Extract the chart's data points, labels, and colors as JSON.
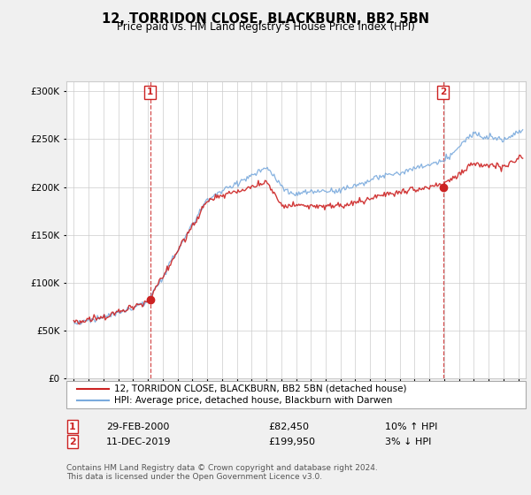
{
  "title": "12, TORRIDON CLOSE, BLACKBURN, BB2 5BN",
  "subtitle": "Price paid vs. HM Land Registry's House Price Index (HPI)",
  "legend_house": "12, TORRIDON CLOSE, BLACKBURN, BB2 5BN (detached house)",
  "legend_hpi": "HPI: Average price, detached house, Blackburn with Darwen",
  "footnote": "Contains HM Land Registry data © Crown copyright and database right 2024.\nThis data is licensed under the Open Government Licence v3.0.",
  "transaction1_date": "29-FEB-2000",
  "transaction1_price": "£82,450",
  "transaction1_hpi": "10% ↑ HPI",
  "transaction1_year": 2000.15,
  "transaction1_value": 82450,
  "transaction2_date": "11-DEC-2019",
  "transaction2_price": "£199,950",
  "transaction2_hpi": "3% ↓ HPI",
  "transaction2_year": 2019.92,
  "transaction2_value": 199950,
  "ylim_min": 0,
  "ylim_max": 310000,
  "xlim_min": 1994.5,
  "xlim_max": 2025.5,
  "hpi_color": "#7aaadd",
  "price_color": "#cc2222",
  "background_color": "#f0f0f0",
  "plot_bg_color": "#ffffff",
  "grid_color": "#cccccc"
}
